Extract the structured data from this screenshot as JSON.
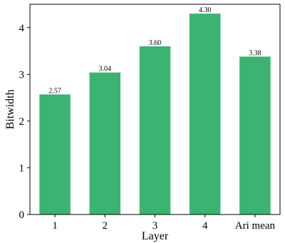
{
  "chart_data": {
    "type": "bar",
    "title": "",
    "xlabel": "Layer",
    "ylabel": "Bitwidth",
    "categories": [
      "1",
      "2",
      "3",
      "4",
      "Ari mean"
    ],
    "values": [
      2.57,
      3.04,
      3.6,
      4.3,
      3.38
    ],
    "data_labels": [
      "2.57",
      "3.04",
      "3.60",
      "4.30",
      "3.38"
    ],
    "ylim": [
      0,
      4.5
    ],
    "yticks": [
      0,
      1,
      2,
      3,
      4
    ],
    "ytick_labels": [
      "0",
      "1",
      "2",
      "3",
      "4"
    ],
    "bar_color": "#3db371",
    "grid": false,
    "legend": "none"
  }
}
